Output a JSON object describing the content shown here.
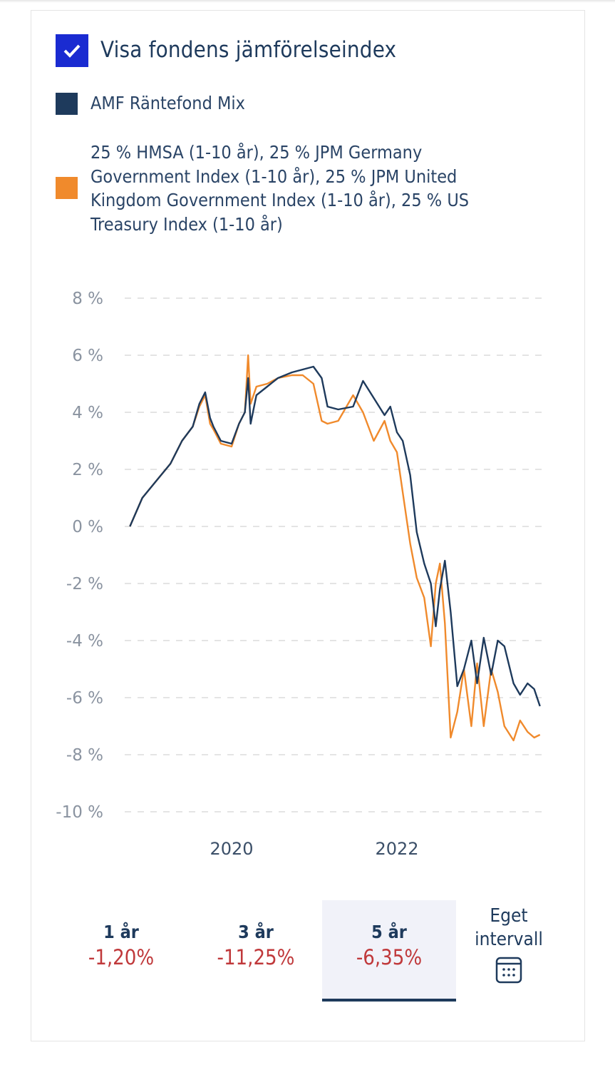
{
  "header": {
    "checkbox_checked": true,
    "title": "Visa fondens jämförelseindex"
  },
  "legend": [
    {
      "label": "AMF Räntefond Mix",
      "color": "#1e3a5c"
    },
    {
      "label": "25 % HMSA (1-10 år), 25 % JPM Germany Government Index (1-10 år), 25 % JPM United Kingdom Government Index (1-10 år), 25 % US Treasury Index (1-10 år)",
      "color": "#f08a2c"
    }
  ],
  "chart_data": {
    "type": "line",
    "title": "",
    "xlabel": "",
    "ylabel": "",
    "xlim": [
      2018.6,
      2023.85
    ],
    "ylim": [
      -10,
      8
    ],
    "yticks": [
      8,
      6,
      4,
      2,
      0,
      -2,
      -4,
      -6,
      -8,
      -10
    ],
    "ytick_labels": [
      "8 %",
      "6 %",
      "4 %",
      "2 %",
      "0 %",
      "-2 %",
      "-4 %",
      "-6 %",
      "-8 %",
      "-10 %"
    ],
    "xticks": [
      2020,
      2022
    ],
    "xtick_labels": [
      "2020",
      "2022"
    ],
    "grid": "horizontal-dashed",
    "x": [
      2018.77,
      2018.92,
      2019.09,
      2019.26,
      2019.4,
      2019.53,
      2019.61,
      2019.68,
      2019.74,
      2019.78,
      2019.87,
      2020.0,
      2020.09,
      2020.16,
      2020.2,
      2020.23,
      2020.3,
      2020.43,
      2020.56,
      2020.73,
      2020.86,
      2020.99,
      2021.09,
      2021.16,
      2021.29,
      2021.47,
      2021.59,
      2021.72,
      2021.85,
      2021.92,
      2022.0,
      2022.07,
      2022.16,
      2022.24,
      2022.33,
      2022.41,
      2022.47,
      2022.52,
      2022.58,
      2022.65,
      2022.73,
      2022.81,
      2022.9,
      2022.97,
      2023.05,
      2023.14,
      2023.22,
      2023.3,
      2023.41,
      2023.49,
      2023.58,
      2023.66,
      2023.73
    ],
    "series": [
      {
        "name": "AMF Räntefond Mix",
        "color": "#1e3a5c",
        "values": [
          0,
          1.0,
          1.6,
          2.2,
          3.0,
          3.5,
          4.3,
          4.7,
          3.8,
          3.5,
          3.0,
          2.9,
          3.6,
          4.0,
          5.2,
          3.6,
          4.6,
          4.9,
          5.2,
          5.4,
          5.5,
          5.6,
          5.2,
          4.2,
          4.1,
          4.2,
          5.1,
          4.5,
          3.9,
          4.2,
          3.3,
          3.0,
          1.8,
          -0.2,
          -1.3,
          -2.0,
          -3.5,
          -2.2,
          -1.2,
          -3.0,
          -5.6,
          -5.0,
          -4.0,
          -5.5,
          -3.9,
          -5.2,
          -4.0,
          -4.2,
          -5.5,
          -5.9,
          -5.5,
          -5.7,
          -6.3
        ]
      },
      {
        "name": "Jämförelseindex",
        "color": "#f08a2c",
        "values": [
          0,
          1.0,
          1.6,
          2.2,
          3.0,
          3.5,
          4.2,
          4.6,
          3.6,
          3.4,
          2.9,
          2.8,
          3.6,
          4.0,
          6.0,
          4.3,
          4.9,
          5.0,
          5.2,
          5.3,
          5.3,
          5.0,
          3.7,
          3.6,
          3.7,
          4.6,
          4.0,
          3.0,
          3.7,
          3.0,
          2.6,
          1.2,
          -0.6,
          -1.8,
          -2.5,
          -4.2,
          -2.0,
          -1.3,
          -3.4,
          -7.4,
          -6.5,
          -5.0,
          -7.0,
          -4.8,
          -7.0,
          -5.0,
          -5.8,
          -7.0,
          -7.5,
          -6.8,
          -7.2,
          -7.4,
          -7.3
        ]
      }
    ]
  },
  "periods": [
    {
      "label": "1 år",
      "value": "-1,20%",
      "active": false
    },
    {
      "label": "3 år",
      "value": "-11,25%",
      "active": false
    },
    {
      "label": "5 år",
      "value": "-6,35%",
      "active": true
    }
  ],
  "custom_period": {
    "label": "Eget intervall",
    "icon": "calendar-icon"
  }
}
